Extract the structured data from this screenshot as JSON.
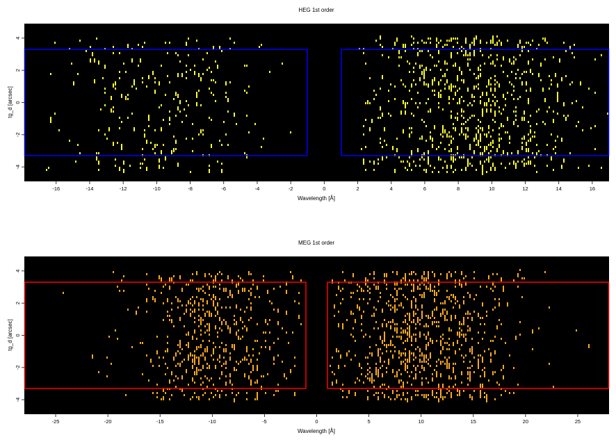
{
  "chart_data": [
    {
      "type": "heatmap",
      "title": "HEG 1st order",
      "xlabel": "Wavelength [Å]",
      "ylabel": "tg_d [arcsec]",
      "xlim": [
        -17.9,
        17.0
      ],
      "ylim": [
        -4.9,
        4.9
      ],
      "xticks": [
        -16,
        -14,
        -12,
        -10,
        -8,
        -6,
        -4,
        -2,
        0,
        2,
        4,
        6,
        8,
        10,
        12,
        14,
        16
      ],
      "yticks": [
        -4,
        -2,
        0,
        2,
        4
      ],
      "background_color": "#000000",
      "event_color": "#ffff33",
      "regions": [
        {
          "x": [
            -17.9,
            -1.0
          ],
          "y": [
            -3.3,
            3.3
          ],
          "color": "#0000ff"
        },
        {
          "x": [
            1.0,
            17.0
          ],
          "y": [
            -3.3,
            3.3
          ],
          "color": "#0000ff"
        }
      ],
      "event_distribution": [
        {
          "x_range": [
            -16.6,
            -1.2
          ],
          "x_peak": -9.5,
          "x_spread": 3.3,
          "y_range": [
            -4.3,
            4.0
          ],
          "count": 260
        },
        {
          "x_range": [
            2.0,
            16.9
          ],
          "x_peak": 8.5,
          "x_spread": 3.6,
          "y_range": [
            -4.3,
            4.1
          ],
          "count": 760
        }
      ]
    },
    {
      "type": "heatmap",
      "title": "MEG 1st order",
      "xlabel": "Wavelength [Å]",
      "ylabel": "tg_d [arcsec]",
      "xlim": [
        -28.0,
        28.0
      ],
      "ylim": [
        -4.9,
        4.9
      ],
      "xticks": [
        -25,
        -20,
        -15,
        -10,
        -5,
        0,
        5,
        10,
        15,
        20,
        25
      ],
      "yticks": [
        -4,
        -2,
        0,
        2,
        4
      ],
      "background_color": "#000000",
      "event_color": "#ffaa22",
      "regions": [
        {
          "x": [
            -28.0,
            -1.0
          ],
          "y": [
            -3.3,
            3.3
          ],
          "color": "#ff0000"
        },
        {
          "x": [
            1.0,
            28.0
          ],
          "y": [
            -3.3,
            3.3
          ],
          "color": "#ff0000"
        }
      ],
      "event_distribution": [
        {
          "x_range": [
            -27.0,
            -1.2
          ],
          "x_peak": -10.0,
          "x_spread": 3.8,
          "y_range": [
            -4.0,
            4.0
          ],
          "count": 520
        },
        {
          "x_range": [
            1.2,
            27.5
          ],
          "x_peak": 10.0,
          "x_spread": 4.5,
          "y_range": [
            -4.0,
            4.0
          ],
          "count": 850
        }
      ]
    }
  ]
}
